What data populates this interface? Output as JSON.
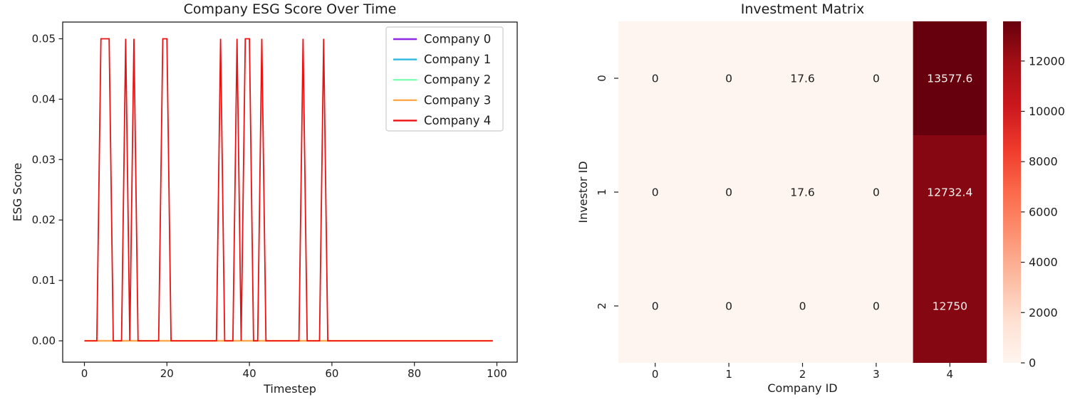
{
  "figure": {
    "background": "#ffffff",
    "text_color": "#1c1c1c",
    "spine_color": "#1c1c1c",
    "legend_border_color": "#cbcbcb"
  },
  "chart_data": [
    {
      "type": "line",
      "title": "Company ESG Score Over Time",
      "xlabel": "Timestep",
      "ylabel": "ESG Score",
      "xticks": [
        0,
        20,
        40,
        60,
        80,
        100
      ],
      "ytick_labels": [
        "0.00",
        "0.01",
        "0.02",
        "0.03",
        "0.04",
        "0.05"
      ],
      "ytick_values": [
        0,
        0.01,
        0.02,
        0.03,
        0.04,
        0.05
      ],
      "xlim": [
        -5,
        104
      ],
      "ylim": [
        -0.0025,
        0.0525
      ],
      "n_timesteps": 100,
      "grid": false,
      "legend_position": "upper right",
      "series": [
        {
          "name": "Company 0",
          "color": "#8e2be2",
          "baseline": 0,
          "peak_value": 0.05,
          "peak_timesteps": []
        },
        {
          "name": "Company 1",
          "color": "#2eb8e0",
          "baseline": 0,
          "peak_value": 0.05,
          "peak_timesteps": []
        },
        {
          "name": "Company 2",
          "color": "#80ffb3",
          "baseline": 0,
          "peak_value": 0.05,
          "peak_timesteps": []
        },
        {
          "name": "Company 3",
          "color": "#ffa94e",
          "baseline": 0,
          "peak_value": 0.05,
          "peak_timesteps": []
        },
        {
          "name": "Company 4",
          "color": "#ee1111",
          "baseline": 0,
          "peak_value": 0.05,
          "peak_timesteps": [
            4,
            5,
            6,
            10,
            12,
            19,
            20,
            33,
            37,
            39,
            40,
            43,
            53,
            58
          ]
        }
      ]
    },
    {
      "type": "heatmap",
      "title": "Investment Matrix",
      "xlabel": "Company ID",
      "ylabel": "Investor ID",
      "x_labels": [
        "0",
        "1",
        "2",
        "3",
        "4"
      ],
      "y_labels": [
        "0",
        "1",
        "2"
      ],
      "matrix": [
        [
          0,
          0,
          17.6,
          0,
          13577.6
        ],
        [
          0,
          0,
          17.6,
          0,
          12732.4
        ],
        [
          0,
          0,
          0,
          0,
          12750
        ]
      ],
      "cell_labels": [
        [
          "0",
          "0",
          "17.6",
          "0",
          "13577.6"
        ],
        [
          "0",
          "0",
          "17.6",
          "0",
          "12732.4"
        ],
        [
          "0",
          "0",
          "0",
          "0",
          "12750"
        ]
      ],
      "vmin": 0,
      "vmax": 13577.6,
      "colormap": "Reds",
      "colormap_stops": [
        "#fff5f0",
        "#fee0d2",
        "#fcbba1",
        "#fc9272",
        "#fb6a4a",
        "#ef3b2c",
        "#cb181d",
        "#a50f15",
        "#67000d"
      ],
      "annotation_dark_text": "#1c1c1c",
      "annotation_light_text": "#f7f3f1",
      "colorbar_ticks": [
        0,
        2000,
        4000,
        6000,
        8000,
        10000,
        12000
      ]
    }
  ]
}
